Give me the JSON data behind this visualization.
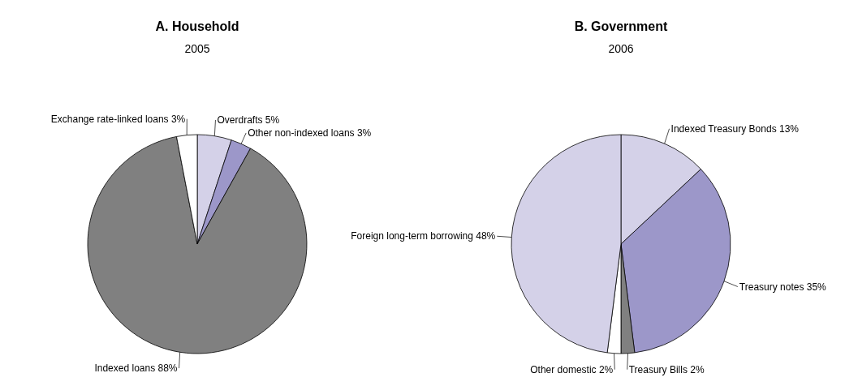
{
  "chart_data": [
    {
      "type": "pie",
      "title": "A. Household",
      "subtitle": "2005",
      "categories": [
        "Overdrafts",
        "Other non-indexed loans",
        "Indexed loans",
        "Exchange rate-linked loans"
      ],
      "values": [
        5,
        3,
        88,
        3
      ],
      "value_labels": [
        "5%",
        "3%",
        "88%",
        "3%"
      ],
      "colors": [
        "#d4d1e8",
        "#9c97c9",
        "#808080",
        "#ffffff"
      ]
    },
    {
      "type": "pie",
      "title": "B. Government",
      "subtitle": "2006",
      "categories": [
        "Indexed Treasury Bonds",
        "Treasury notes",
        "Treasury Bills",
        "Other domestic",
        "Foreign long-term borrowing"
      ],
      "values": [
        13,
        35,
        2,
        2,
        48
      ],
      "value_labels": [
        "13%",
        "35%",
        "2%",
        "2%",
        "48%"
      ],
      "colors": [
        "#d4d1e8",
        "#9c97c9",
        "#808080",
        "#ffffff",
        "#d4d1e8"
      ]
    }
  ]
}
